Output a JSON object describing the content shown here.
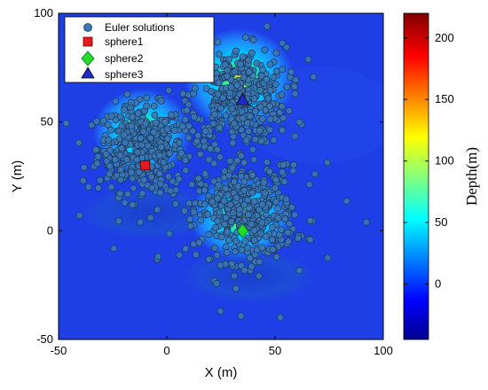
{
  "chart_data": {
    "type": "scatter",
    "xlabel": "X (m)",
    "ylabel": "Y (m)",
    "xlim": [
      -50,
      100
    ],
    "ylim": [
      -50,
      100
    ],
    "xticks": [
      "-50",
      "0",
      "50",
      "100"
    ],
    "yticks": [
      "-50",
      "0",
      "50",
      "100"
    ],
    "grid": false,
    "legend_position": "top-left",
    "background_field": "depth colormap (jet) of anomaly; mostly around -30 m, rising near the three spheres",
    "colorbar": {
      "label": "Depth(m)",
      "range": [
        -45,
        220
      ],
      "ticks": [
        "0",
        "50",
        "100",
        "150",
        "200"
      ],
      "colormap": "jet"
    },
    "series": [
      {
        "name": "Euler solutions",
        "marker": "circle",
        "color": "#3a78b4",
        "clusters": [
          {
            "x": -12,
            "y": 38,
            "n": 420,
            "spread": 18
          },
          {
            "x": 33,
            "y": 62,
            "n": 380,
            "spread": 20
          },
          {
            "x": 37,
            "y": 8,
            "n": 380,
            "spread": 20
          },
          {
            "x": 25,
            "y": 22,
            "n": 120,
            "spread": 45
          }
        ]
      },
      {
        "name": "sphere1",
        "marker": "square",
        "color": "#e41a1c",
        "points": [
          [
            -10,
            30
          ]
        ]
      },
      {
        "name": "sphere2",
        "marker": "diamond",
        "color": "#22dd22",
        "points": [
          [
            35,
            0
          ]
        ]
      },
      {
        "name": "sphere3",
        "marker": "triangle",
        "color": "#1f2acb",
        "points": [
          [
            35,
            60
          ]
        ]
      }
    ]
  }
}
